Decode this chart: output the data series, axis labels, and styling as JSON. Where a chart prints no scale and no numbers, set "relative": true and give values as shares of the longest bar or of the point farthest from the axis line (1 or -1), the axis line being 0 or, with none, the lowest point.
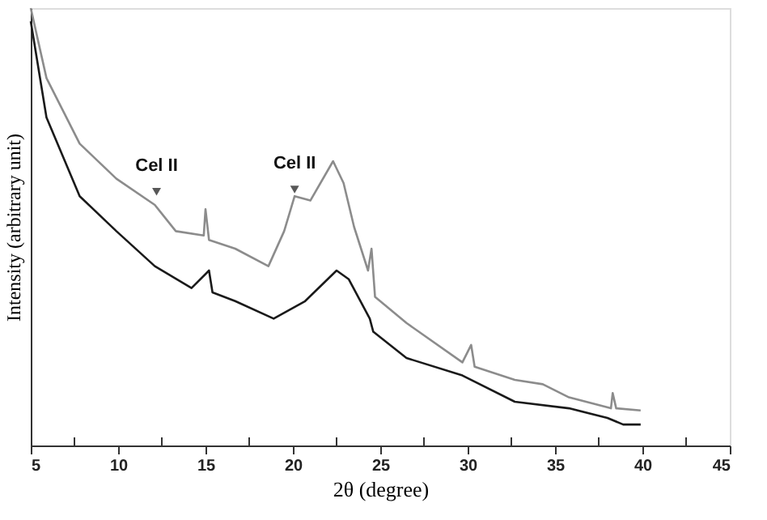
{
  "chart_data": {
    "type": "line",
    "relative": true,
    "xlabel": "2θ (degree)",
    "ylabel": "Intensity (arbitrary unit)",
    "xlim": [
      5,
      45
    ],
    "xticks": [
      5,
      {
        "value": 7.5,
        "label": null
      },
      10,
      {
        "value": 12.5,
        "label": null
      },
      15,
      {
        "value": 17.5,
        "label": null
      },
      20,
      {
        "value": 22.5,
        "label": null
      },
      25,
      {
        "value": 27.5,
        "label": null
      },
      30,
      {
        "value": 32.5,
        "label": null
      },
      35,
      {
        "value": 37.5,
        "label": null
      },
      40,
      {
        "value": 42.5,
        "label": null
      },
      45
    ],
    "grid": false,
    "marker": "none",
    "line_style": "solid",
    "series": [
      {
        "color": "#8c8c8c",
        "x": [
          5,
          5.9,
          7.8,
          9.9,
          12.1,
          13.3,
          14.9,
          15.0,
          15.2,
          16.7,
          18.6,
          19.5,
          20.1,
          21,
          22.3,
          22.9,
          23.5,
          24.3,
          24.5,
          24.7,
          26.5,
          29.7,
          30.2,
          30.4,
          32.7,
          34.3,
          35.8,
          38.2,
          38.3,
          38.5,
          39.9
        ],
        "values": [
          1.0,
          0.84,
          0.69,
          0.61,
          0.55,
          0.49,
          0.48,
          0.54,
          0.47,
          0.45,
          0.41,
          0.49,
          0.57,
          0.56,
          0.65,
          0.6,
          0.5,
          0.4,
          0.45,
          0.34,
          0.28,
          0.19,
          0.23,
          0.18,
          0.15,
          0.14,
          0.11,
          0.085,
          0.12,
          0.085,
          0.08
        ]
      },
      {
        "color": "#1a1a1a",
        "x": [
          5,
          5.9,
          7.8,
          9.9,
          12.1,
          14.2,
          15.2,
          15.4,
          16.7,
          18.9,
          20.7,
          22.5,
          23.2,
          24.4,
          24.6,
          26.5,
          29.7,
          32.7,
          35.8,
          38,
          38.9,
          39.9
        ],
        "values": [
          0.97,
          0.75,
          0.57,
          0.49,
          0.41,
          0.36,
          0.4,
          0.35,
          0.33,
          0.29,
          0.33,
          0.4,
          0.38,
          0.29,
          0.26,
          0.2,
          0.16,
          0.1,
          0.085,
          0.063,
          0.048,
          0.048
        ]
      }
    ],
    "annotations": [
      {
        "text": "Cel II",
        "x": 12.2,
        "y": 0.58
      },
      {
        "text": "Cel II",
        "x": 20.1,
        "y": 0.585
      }
    ]
  }
}
